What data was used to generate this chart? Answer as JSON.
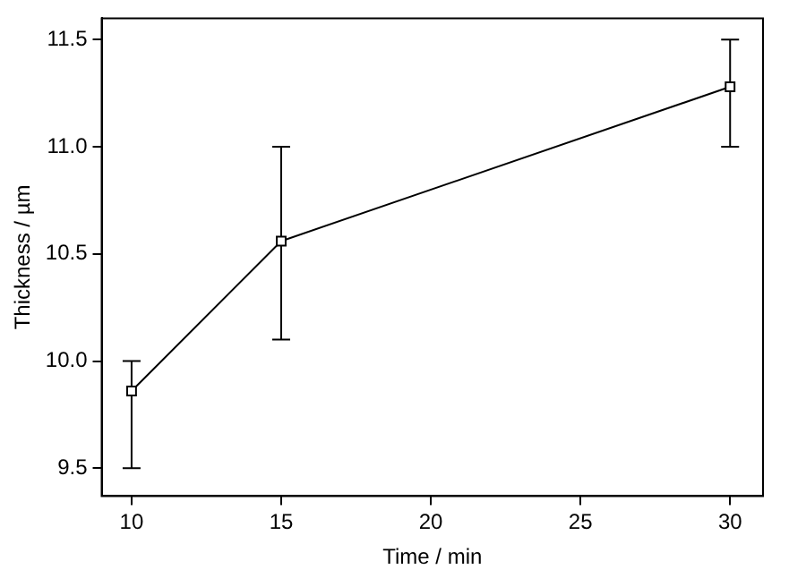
{
  "chart_data": {
    "type": "line",
    "xlabel": "Time / min",
    "ylabel": "Thickness / µm",
    "x": [
      10,
      15,
      30
    ],
    "series": [
      {
        "color": "#000000",
        "values": [
          9.86,
          10.56,
          11.28
        ],
        "errors": [
          [
            9.5,
            10.0
          ],
          [
            10.1,
            11.0
          ],
          [
            11.0,
            11.5
          ]
        ]
      }
    ],
    "xlim": [
      9,
      31.1
    ],
    "xticks": [
      10,
      15,
      20,
      25,
      30
    ],
    "ylim": [
      9.37,
      11.6
    ],
    "yticks": [
      {
        "value": 9.5,
        "label": "9.5"
      },
      {
        "value": 10,
        "label": "10.0"
      },
      {
        "value": 10.5,
        "label": "10.5"
      },
      {
        "value": 11,
        "label": "11.0"
      },
      {
        "value": 11.5,
        "label": "11.5"
      }
    ],
    "grid": false,
    "legend": false,
    "marker": "square",
    "line_style": "solid"
  }
}
